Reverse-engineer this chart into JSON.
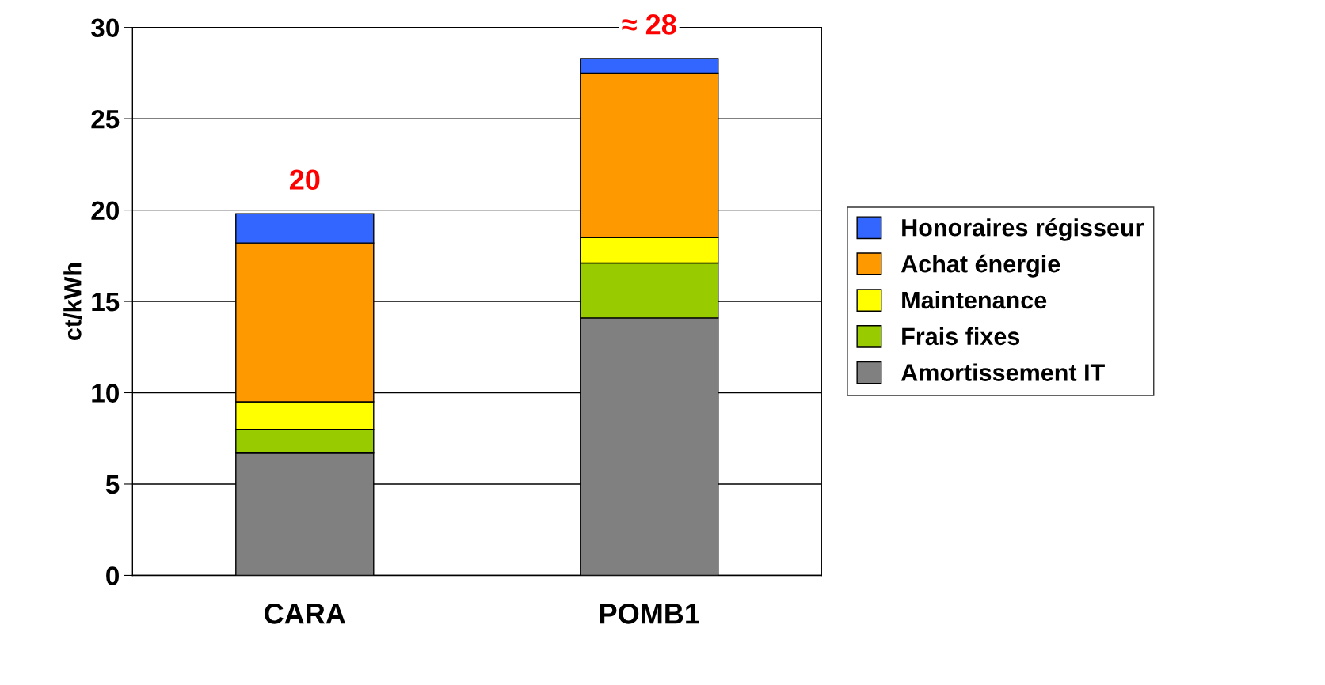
{
  "chart_data": {
    "type": "bar",
    "stacked": true,
    "ylabel": "ct/kWh",
    "categories": [
      "CARA",
      "POMB1"
    ],
    "series": [
      {
        "name": "Amortissement IT",
        "color": "#808080",
        "values": [
          6.7,
          14.1
        ]
      },
      {
        "name": "Frais fixes",
        "color": "#99cc00",
        "values": [
          1.3,
          3.0
        ]
      },
      {
        "name": "Maintenance",
        "color": "#ffff00",
        "values": [
          1.5,
          1.4
        ]
      },
      {
        "name": "Achat énergie",
        "color": "#ff9900",
        "values": [
          8.7,
          9.0
        ]
      },
      {
        "name": "Honoraires régisseur",
        "color": "#3366ff",
        "values": [
          1.6,
          0.8
        ]
      }
    ],
    "totals": [
      "20",
      "≈ 28"
    ],
    "ylim": [
      0,
      30
    ],
    "yticks": [
      0,
      5,
      10,
      15,
      20,
      25,
      30
    ],
    "grid": "y",
    "legend": "right"
  }
}
